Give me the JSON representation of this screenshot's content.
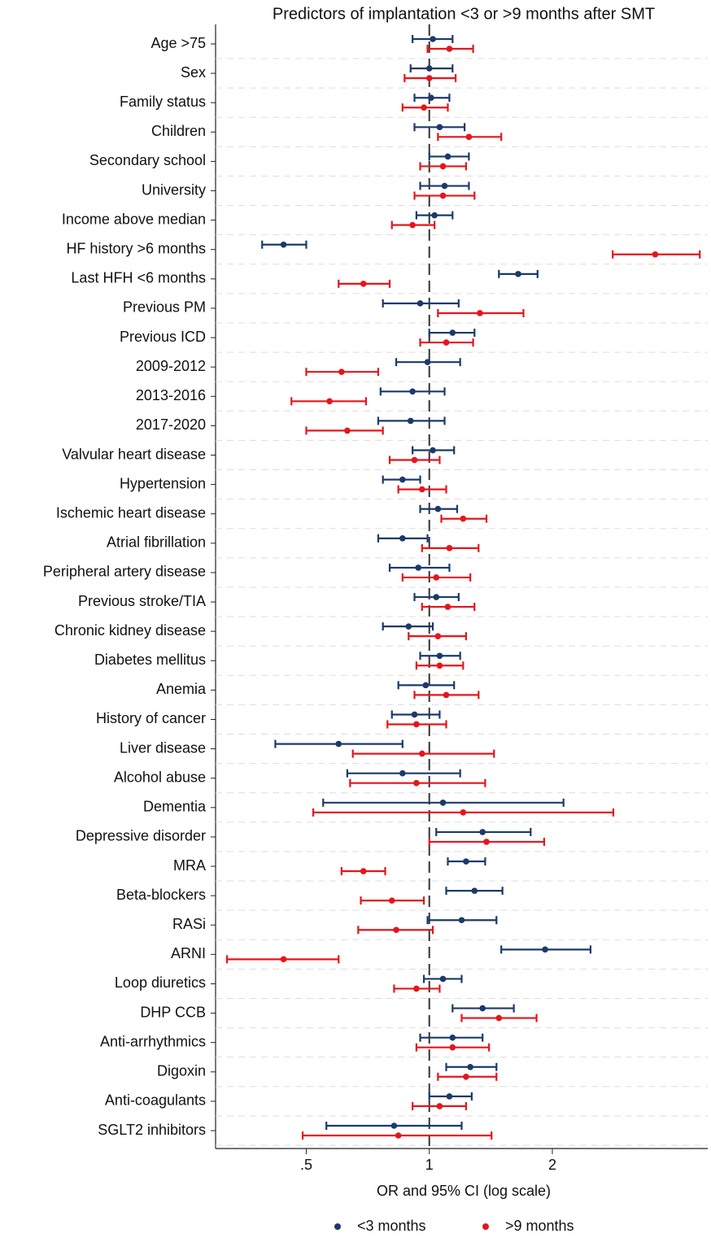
{
  "chart_data": {
    "type": "forest",
    "title": "Predictors of implantation <3 or >9 months after SMT",
    "xlabel": "OR and 95% CI (log scale)",
    "log_scale": true,
    "reference": 1,
    "grid": true,
    "legend": "bottom",
    "xlim": [
      0.3,
      4.8
    ],
    "xticks": [
      {
        "value": 0.5,
        "label": ".5"
      },
      1,
      2
    ],
    "categories": [
      "Age >75",
      "Sex",
      "Family status",
      "Children",
      "Secondary school",
      "University",
      "Income above median",
      "HF history >6 months",
      "Last HFH <6 months",
      "Previous PM",
      "Previous ICD",
      "2009-2012",
      "2013-2016",
      "2017-2020",
      "Valvular heart disease",
      "Hypertension",
      "Ischemic heart disease",
      "Atrial fibrillation",
      "Peripheral artery disease",
      "Previous stroke/TIA",
      "Chronic kidney disease",
      "Diabetes mellitus",
      "Anemia",
      "History of cancer",
      "Liver disease",
      "Alcohol abuse",
      "Dementia",
      "Depressive disorder",
      "MRA",
      "Beta-blockers",
      "RASi",
      "ARNI",
      "Loop diuretics",
      "DHP CCB",
      "Anti-arrhythmics",
      "Digoxin",
      "Anti-coagulants",
      "SGLT2 inhibitors"
    ],
    "series": [
      {
        "name": "<3 months",
        "color": "#1b3a6b",
        "values": [
          1.02,
          1.0,
          1.01,
          1.06,
          1.11,
          1.09,
          1.03,
          0.44,
          1.65,
          0.95,
          1.14,
          0.99,
          0.91,
          0.9,
          1.02,
          0.86,
          1.05,
          0.86,
          0.94,
          1.04,
          0.89,
          1.06,
          0.98,
          0.92,
          0.6,
          0.86,
          1.08,
          1.35,
          1.23,
          1.29,
          1.2,
          1.92,
          1.08,
          1.35,
          1.14,
          1.26,
          1.12,
          0.82
        ],
        "lower": [
          0.91,
          0.9,
          0.92,
          0.92,
          1.0,
          0.95,
          0.93,
          0.39,
          1.48,
          0.77,
          1.0,
          0.83,
          0.76,
          0.75,
          0.91,
          0.77,
          0.95,
          0.75,
          0.8,
          0.92,
          0.77,
          0.95,
          0.84,
          0.81,
          0.42,
          0.63,
          0.55,
          1.04,
          1.11,
          1.1,
          0.99,
          1.5,
          0.97,
          1.14,
          0.95,
          1.1,
          1.0,
          0.56
        ],
        "upper": [
          1.14,
          1.14,
          1.12,
          1.22,
          1.25,
          1.25,
          1.14,
          0.5,
          1.84,
          1.18,
          1.29,
          1.19,
          1.09,
          1.09,
          1.15,
          0.95,
          1.17,
          0.99,
          1.12,
          1.18,
          1.02,
          1.19,
          1.15,
          1.06,
          0.86,
          1.19,
          2.13,
          1.77,
          1.37,
          1.51,
          1.46,
          2.48,
          1.2,
          1.61,
          1.35,
          1.46,
          1.27,
          1.2
        ]
      },
      {
        "name": ">9 months",
        "color": "#e8141b",
        "values": [
          1.12,
          1.0,
          0.97,
          1.25,
          1.08,
          1.08,
          0.91,
          3.57,
          0.69,
          1.33,
          1.1,
          0.61,
          0.57,
          0.63,
          0.92,
          0.96,
          1.21,
          1.12,
          1.04,
          1.11,
          1.05,
          1.06,
          1.1,
          0.93,
          0.96,
          0.93,
          1.21,
          1.38,
          0.69,
          0.81,
          0.83,
          0.44,
          0.93,
          1.48,
          1.14,
          1.23,
          1.06,
          0.84
        ],
        "lower": [
          0.99,
          0.87,
          0.86,
          1.05,
          0.95,
          0.92,
          0.81,
          2.81,
          0.6,
          1.05,
          0.95,
          0.5,
          0.46,
          0.5,
          0.8,
          0.84,
          1.07,
          0.96,
          0.86,
          0.96,
          0.89,
          0.93,
          0.92,
          0.79,
          0.65,
          0.64,
          0.52,
          1.0,
          0.61,
          0.68,
          0.67,
          0.32,
          0.82,
          1.2,
          0.93,
          1.05,
          0.91,
          0.49
        ],
        "upper": [
          1.28,
          1.16,
          1.11,
          1.5,
          1.23,
          1.29,
          1.03,
          4.59,
          0.8,
          1.7,
          1.28,
          0.75,
          0.7,
          0.77,
          1.06,
          1.1,
          1.38,
          1.32,
          1.26,
          1.29,
          1.23,
          1.21,
          1.32,
          1.1,
          1.44,
          1.37,
          2.82,
          1.91,
          0.78,
          0.97,
          1.02,
          0.6,
          1.06,
          1.83,
          1.4,
          1.46,
          1.23,
          1.42
        ]
      }
    ]
  }
}
